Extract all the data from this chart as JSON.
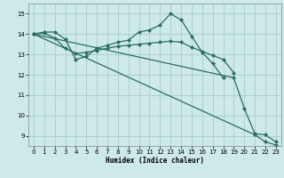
{
  "xlabel": "Humidex (Indice chaleur)",
  "bg_color": "#cde9e9",
  "grid_color": "#aacccc",
  "line_color": "#2a6e64",
  "xlim": [
    -0.5,
    23.5
  ],
  "ylim": [
    8.5,
    15.5
  ],
  "yticks": [
    9,
    10,
    11,
    12,
    13,
    14,
    15
  ],
  "xticks": [
    0,
    1,
    2,
    3,
    4,
    5,
    6,
    7,
    8,
    9,
    10,
    11,
    12,
    13,
    14,
    15,
    16,
    17,
    18,
    19,
    20,
    21,
    22,
    23
  ],
  "lines": [
    {
      "x": [
        0,
        1,
        2,
        3,
        4,
        5,
        6,
        7,
        8,
        9,
        10,
        11,
        12,
        13,
        14,
        15,
        16,
        17,
        18
      ],
      "y": [
        14.0,
        14.1,
        14.1,
        13.75,
        12.75,
        12.9,
        13.3,
        13.45,
        13.6,
        13.7,
        14.1,
        14.2,
        14.45,
        15.0,
        14.7,
        13.9,
        13.1,
        12.55,
        11.85
      ]
    },
    {
      "x": [
        0,
        1,
        2,
        3,
        4,
        5,
        6,
        7,
        8,
        9,
        10,
        11,
        12,
        13,
        14,
        15,
        16,
        17,
        18,
        19
      ],
      "y": [
        14.0,
        14.05,
        13.8,
        13.3,
        13.05,
        13.1,
        13.2,
        13.3,
        13.4,
        13.45,
        13.5,
        13.55,
        13.6,
        13.65,
        13.6,
        13.35,
        13.15,
        12.95,
        12.75,
        12.1
      ]
    },
    {
      "x": [
        0,
        19,
        20,
        21,
        22,
        23
      ],
      "y": [
        14.0,
        11.85,
        10.35,
        9.1,
        9.05,
        8.7
      ]
    },
    {
      "x": [
        0,
        21,
        22,
        23
      ],
      "y": [
        14.0,
        9.05,
        8.7,
        8.55
      ]
    }
  ]
}
